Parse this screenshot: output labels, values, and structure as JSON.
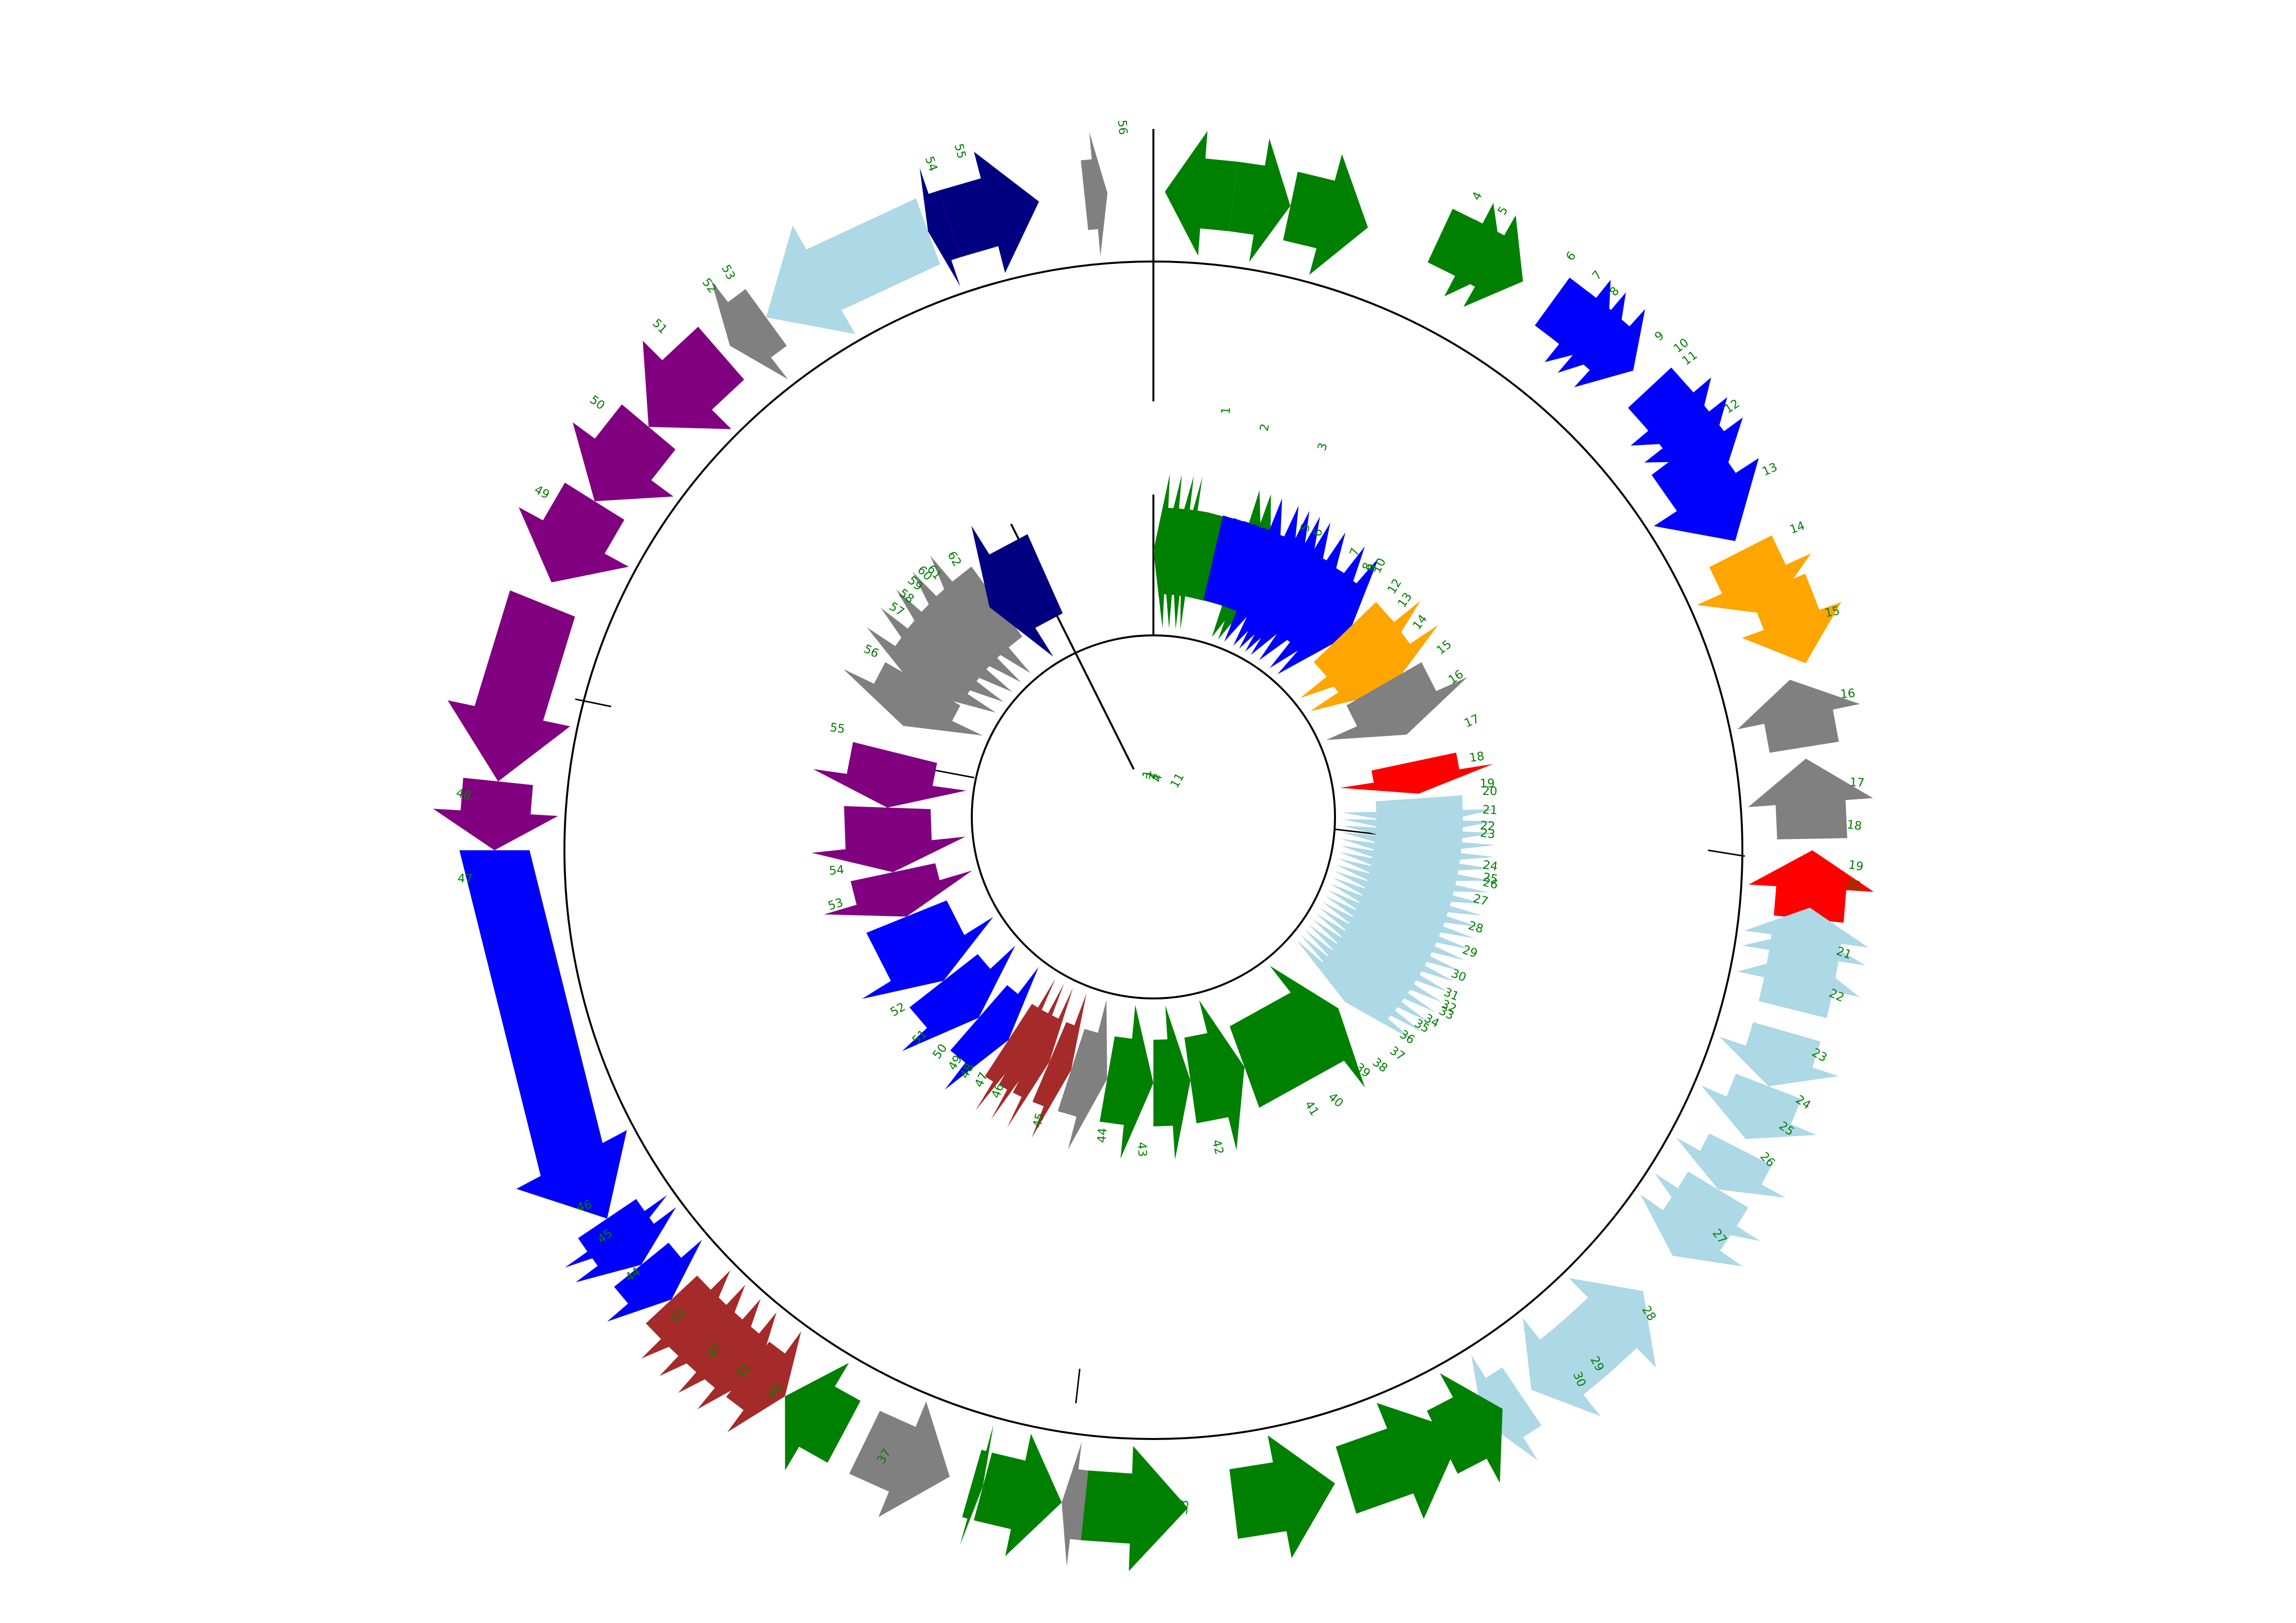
{
  "colors": {
    "green": "#008000",
    "blue": "#0000FF",
    "orange": "#FFA500",
    "gray": "#808080",
    "red": "#FF0000",
    "lightblue": "#ADD8E6",
    "brown": "#A52A2A",
    "purple": "#800080",
    "navy": "#000080",
    "label": "#008000",
    "backbone": "#000000"
  },
  "outer_map": {
    "arrows": [
      {
        "n": "1",
        "c": "green"
      },
      {
        "n": "2",
        "c": "green"
      },
      {
        "n": "3",
        "c": "green"
      },
      {
        "n": "4",
        "c": "green"
      },
      {
        "n": "5",
        "c": "green"
      },
      {
        "n": "6",
        "c": "blue"
      },
      {
        "n": "7",
        "c": "blue"
      },
      {
        "n": "8",
        "c": "blue"
      },
      {
        "n": "9",
        "c": "blue"
      },
      {
        "n": "10",
        "c": "blue"
      },
      {
        "n": "11",
        "c": "blue"
      },
      {
        "n": "12",
        "c": "blue"
      },
      {
        "n": "13",
        "c": "orange"
      },
      {
        "n": "14",
        "c": "orange"
      },
      {
        "n": "15",
        "c": "gray"
      },
      {
        "n": "16",
        "c": "gray"
      },
      {
        "n": "17",
        "c": "red"
      },
      {
        "n": "18",
        "c": "lightblue"
      },
      {
        "n": "19",
        "c": "lightblue"
      },
      {
        "n": "20",
        "c": "lightblue"
      },
      {
        "n": "21",
        "c": "lightblue"
      },
      {
        "n": "22",
        "c": "lightblue"
      },
      {
        "n": "23",
        "c": "lightblue"
      },
      {
        "n": "24",
        "c": "lightblue"
      },
      {
        "n": "25",
        "c": "lightblue"
      },
      {
        "n": "26",
        "c": "lightblue"
      },
      {
        "n": "27",
        "c": "lightblue"
      },
      {
        "n": "28",
        "c": "lightblue"
      },
      {
        "n": "29",
        "c": "green"
      },
      {
        "n": "30",
        "c": "green"
      },
      {
        "n": "31",
        "c": "green"
      },
      {
        "n": "32",
        "c": "green"
      },
      {
        "n": "33",
        "c": "gray"
      },
      {
        "n": "34",
        "c": "green"
      },
      {
        "n": "35",
        "c": "green"
      },
      {
        "n": "36",
        "c": "gray"
      },
      {
        "n": "37",
        "c": "green"
      },
      {
        "n": "38",
        "c": "brown"
      },
      {
        "n": "39",
        "c": "brown"
      },
      {
        "n": "40",
        "c": "brown"
      },
      {
        "n": "41",
        "c": "brown"
      },
      {
        "n": "42",
        "c": "brown"
      },
      {
        "n": "43",
        "c": "blue"
      },
      {
        "n": "44",
        "c": "blue"
      },
      {
        "n": "45",
        "c": "blue"
      },
      {
        "n": "46",
        "c": "blue"
      },
      {
        "n": "47",
        "c": "purple"
      },
      {
        "n": "48",
        "c": "purple"
      },
      {
        "n": "49",
        "c": "purple"
      },
      {
        "n": "50",
        "c": "purple"
      },
      {
        "n": "51",
        "c": "purple"
      },
      {
        "n": "52",
        "c": "gray"
      },
      {
        "n": "53",
        "c": "lightblue"
      },
      {
        "n": "54",
        "c": "navy"
      },
      {
        "n": "55",
        "c": "navy"
      },
      {
        "n": "56",
        "c": "gray"
      }
    ]
  },
  "inner_map": {
    "arrows": [
      {
        "n": "1",
        "c": "green"
      },
      {
        "n": "2",
        "c": "green"
      },
      {
        "n": "3",
        "c": "green"
      },
      {
        "n": "4",
        "c": "green"
      },
      {
        "n": "5",
        "c": "green"
      },
      {
        "n": "6",
        "c": "green"
      },
      {
        "n": "7",
        "c": "blue"
      },
      {
        "n": "8",
        "c": "blue"
      },
      {
        "n": "9",
        "c": "blue"
      },
      {
        "n": "10",
        "c": "blue"
      },
      {
        "n": "11",
        "c": "blue"
      },
      {
        "n": "12",
        "c": "blue"
      },
      {
        "n": "13",
        "c": "blue"
      },
      {
        "n": "14",
        "c": "blue"
      },
      {
        "n": "15",
        "c": "orange"
      },
      {
        "n": "16",
        "c": "orange"
      },
      {
        "n": "17",
        "c": "gray"
      },
      {
        "n": "18",
        "c": "red"
      },
      {
        "n": "19",
        "c": "lightblue"
      },
      {
        "n": "20",
        "c": "lightblue"
      },
      {
        "n": "21",
        "c": "lightblue"
      },
      {
        "n": "22",
        "c": "lightblue"
      },
      {
        "n": "23",
        "c": "lightblue"
      },
      {
        "n": "24",
        "c": "lightblue"
      },
      {
        "n": "25",
        "c": "lightblue"
      },
      {
        "n": "26",
        "c": "lightblue"
      },
      {
        "n": "27",
        "c": "lightblue"
      },
      {
        "n": "28",
        "c": "lightblue"
      },
      {
        "n": "29",
        "c": "lightblue"
      },
      {
        "n": "30",
        "c": "lightblue"
      },
      {
        "n": "31",
        "c": "lightblue"
      },
      {
        "n": "32",
        "c": "lightblue"
      },
      {
        "n": "33",
        "c": "lightblue"
      },
      {
        "n": "34",
        "c": "lightblue"
      },
      {
        "n": "35",
        "c": "lightblue"
      },
      {
        "n": "36",
        "c": "lightblue"
      },
      {
        "n": "37",
        "c": "lightblue"
      },
      {
        "n": "38",
        "c": "lightblue"
      },
      {
        "n": "39",
        "c": "lightblue"
      },
      {
        "n": "40",
        "c": "lightblue"
      },
      {
        "n": "41",
        "c": "green"
      },
      {
        "n": "42",
        "c": "green"
      },
      {
        "n": "43",
        "c": "green"
      },
      {
        "n": "44",
        "c": "green"
      },
      {
        "n": "45",
        "c": "gray"
      },
      {
        "n": "46",
        "c": "brown"
      },
      {
        "n": "47",
        "c": "brown"
      },
      {
        "n": "48",
        "c": "brown"
      },
      {
        "n": "49",
        "c": "brown"
      },
      {
        "n": "50",
        "c": "blue"
      },
      {
        "n": "51",
        "c": "blue"
      },
      {
        "n": "52",
        "c": "blue"
      },
      {
        "n": "53",
        "c": "purple"
      },
      {
        "n": "54",
        "c": "purple"
      },
      {
        "n": "55",
        "c": "purple"
      },
      {
        "n": "56",
        "c": "gray"
      },
      {
        "n": "57",
        "c": "gray"
      },
      {
        "n": "58",
        "c": "gray"
      },
      {
        "n": "59",
        "c": "gray"
      },
      {
        "n": "60",
        "c": "gray"
      },
      {
        "n": "61",
        "c": "gray"
      },
      {
        "n": "62",
        "c": "navy"
      }
    ]
  }
}
